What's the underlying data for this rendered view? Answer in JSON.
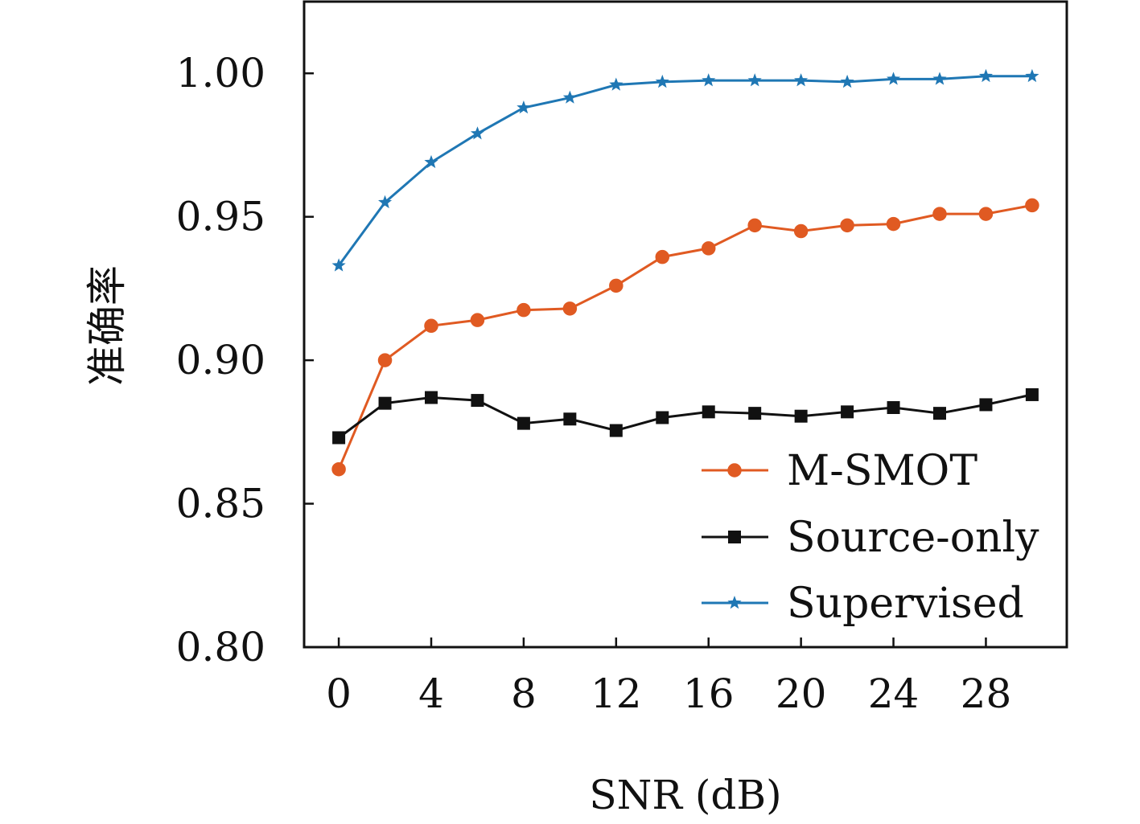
{
  "chart_data": {
    "type": "line",
    "title": "",
    "xlabel": "SNR (dB)",
    "ylabel": "准确率",
    "xlim": [
      -1.5,
      31.5
    ],
    "ylim": [
      0.8,
      1.025
    ],
    "xticks": [
      0,
      4,
      8,
      12,
      16,
      20,
      24,
      28
    ],
    "xtick_labels": [
      "0",
      "4",
      "8",
      "12",
      "16",
      "20",
      "24",
      "28"
    ],
    "yticks": [
      0.8,
      0.85,
      0.9,
      0.95,
      1.0
    ],
    "ytick_labels": [
      "0.80",
      "0.85",
      "0.90",
      "0.95",
      "1.00"
    ],
    "grid": false,
    "legend_position": "lower-right",
    "x": [
      0,
      2,
      4,
      6,
      8,
      10,
      12,
      14,
      16,
      18,
      20,
      22,
      24,
      26,
      28,
      30
    ],
    "series": [
      {
        "name": "M-SMOT",
        "color": "#e05a22",
        "marker": "circle",
        "values": [
          0.862,
          0.9,
          0.912,
          0.914,
          0.9175,
          0.918,
          0.926,
          0.936,
          0.939,
          0.947,
          0.945,
          0.947,
          0.9475,
          0.951,
          0.951,
          0.954
        ]
      },
      {
        "name": "Source-only",
        "color": "#111111",
        "marker": "square",
        "values": [
          0.873,
          0.885,
          0.887,
          0.886,
          0.878,
          0.8795,
          0.8755,
          0.88,
          0.882,
          0.8815,
          0.8805,
          0.882,
          0.8835,
          0.8815,
          0.8845,
          0.888
        ]
      },
      {
        "name": "Supervised",
        "color": "#1f77b4",
        "marker": "star",
        "values": [
          0.933,
          0.955,
          0.969,
          0.979,
          0.988,
          0.9915,
          0.996,
          0.997,
          0.9975,
          0.9975,
          0.9975,
          0.997,
          0.998,
          0.998,
          0.999,
          0.999
        ]
      }
    ]
  }
}
